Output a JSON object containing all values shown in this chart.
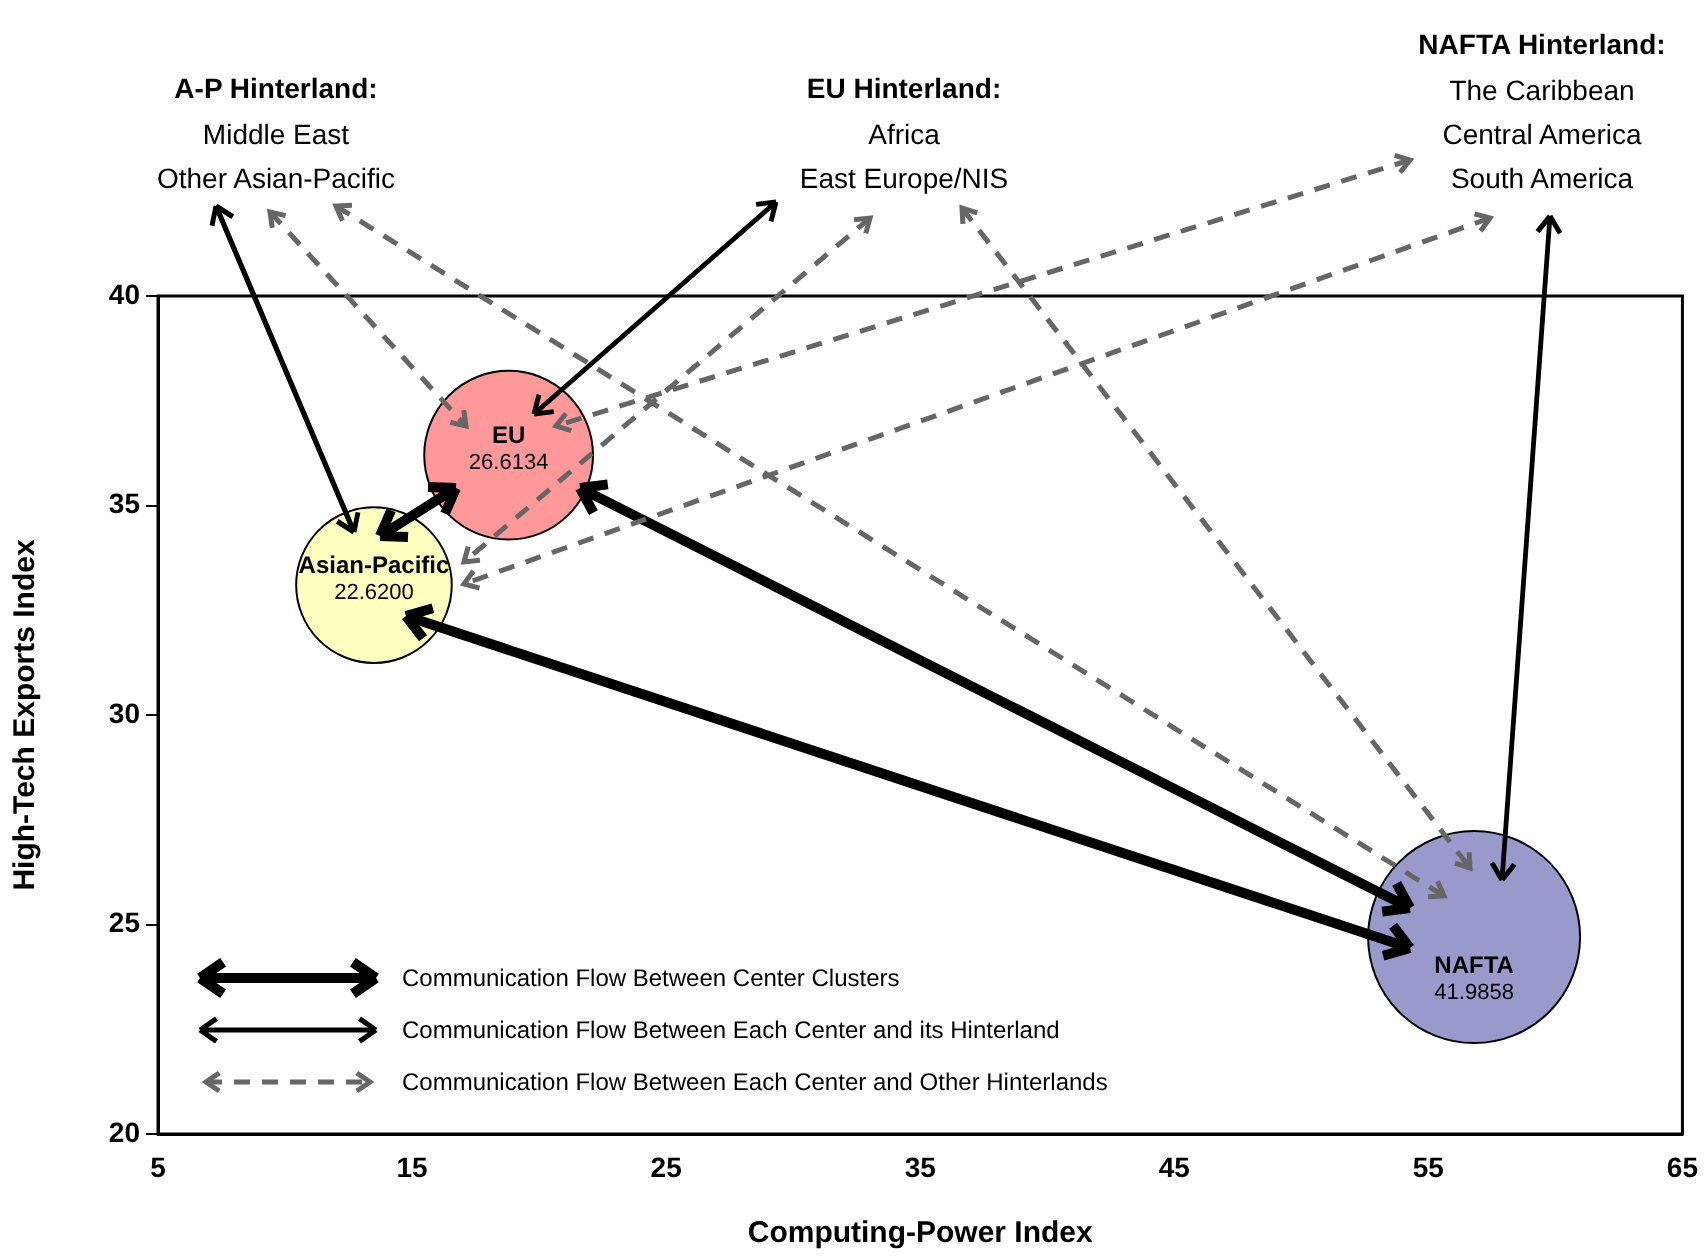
{
  "chart_data": {
    "type": "bubble",
    "xlabel": "Computing-Power Index",
    "ylabel": "High-Tech Exports Index",
    "xlim": [
      5,
      65
    ],
    "xticks": [
      5,
      15,
      25,
      35,
      45,
      55,
      65
    ],
    "ylim": [
      20,
      40
    ],
    "yticks": [
      20,
      25,
      30,
      35,
      40
    ],
    "grid": false,
    "series": [
      {
        "name": "Asian-Pacific",
        "color": "#ffffc0",
        "x": [
          13.5
        ],
        "values": [
          33.1
        ],
        "sizes": [
          22.62
        ],
        "value_labels": [
          "22.6200"
        ]
      },
      {
        "name": "EU",
        "color": "#ff9999",
        "x": [
          18.8
        ],
        "values": [
          36.2
        ],
        "sizes": [
          26.6134
        ],
        "value_labels": [
          "26.6134"
        ]
      },
      {
        "name": "NAFTA",
        "color": "#9999cc",
        "x": [
          56.8
        ],
        "values": [
          24.7
        ],
        "sizes": [
          41.9858
        ],
        "value_labels": [
          "41.9858"
        ]
      }
    ],
    "annotations": [
      "A-P Hinterland:",
      "Middle East",
      "Other Asian-Pacific",
      "EU Hinterland:",
      "Africa",
      "East Europe/NIS",
      "NAFTA Hinterland:",
      "The Caribbean",
      "Central America",
      "South America",
      "Communication Flow Between Center Clusters",
      "Communication Flow Between Each Center and its Hinterland",
      "Communication Flow Between Each Center and Other Hinterlands"
    ]
  }
}
